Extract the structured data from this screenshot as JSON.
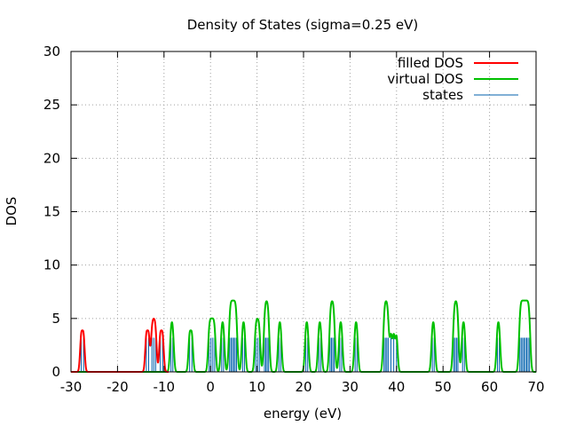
{
  "chart_data": {
    "type": "line",
    "title": "Density of States (sigma=0.25 eV)",
    "xlabel": "energy (eV)",
    "ylabel": "DOS",
    "xlim": [
      -30,
      70
    ],
    "ylim": [
      0,
      30
    ],
    "xticks": [
      -30,
      -20,
      -10,
      0,
      10,
      20,
      30,
      40,
      50,
      60,
      70
    ],
    "yticks": [
      0,
      5,
      10,
      15,
      20,
      25,
      30
    ],
    "grid": true,
    "legend": "top-right",
    "sigma": 0.25,
    "colors": {
      "filled": "#ff0000",
      "virtual": "#00c000",
      "states": "#0060ad"
    },
    "series": [
      {
        "name": "filled DOS",
        "peaks": [
          {
            "x": -27.8,
            "h": 3.2
          },
          {
            "x": -27.3,
            "h": 3.2
          },
          {
            "x": -13.8,
            "h": 3.2
          },
          {
            "x": -13.3,
            "h": 3.2
          },
          {
            "x": -12.6,
            "h": 3.2
          },
          {
            "x": -12.2,
            "h": 3.2
          },
          {
            "x": -11.8,
            "h": 3.2
          },
          {
            "x": -10.8,
            "h": 3.2
          },
          {
            "x": -10.3,
            "h": 3.2
          }
        ]
      },
      {
        "name": "virtual DOS",
        "peaks": [
          {
            "x": -8.5,
            "h": 3.2
          },
          {
            "x": -8.1,
            "h": 3.2
          },
          {
            "x": -4.5,
            "h": 3.2
          },
          {
            "x": -4.0,
            "h": 3.2
          },
          {
            "x": -0.3,
            "h": 3.2
          },
          {
            "x": 0.1,
            "h": 3.2
          },
          {
            "x": 0.5,
            "h": 3.2
          },
          {
            "x": 0.9,
            "h": 3.2
          },
          {
            "x": 2.4,
            "h": 3.2
          },
          {
            "x": 2.8,
            "h": 3.2
          },
          {
            "x": 4.1,
            "h": 3.2
          },
          {
            "x": 4.4,
            "h": 3.2
          },
          {
            "x": 4.7,
            "h": 3.2
          },
          {
            "x": 5.0,
            "h": 3.2
          },
          {
            "x": 5.3,
            "h": 3.2
          },
          {
            "x": 5.6,
            "h": 3.2
          },
          {
            "x": 6.9,
            "h": 3.2
          },
          {
            "x": 7.3,
            "h": 3.2
          },
          {
            "x": 9.7,
            "h": 3.2
          },
          {
            "x": 10.1,
            "h": 3.2
          },
          {
            "x": 10.5,
            "h": 3.2
          },
          {
            "x": 11.6,
            "h": 3.2
          },
          {
            "x": 11.9,
            "h": 3.2
          },
          {
            "x": 12.2,
            "h": 3.2
          },
          {
            "x": 12.5,
            "h": 3.2
          },
          {
            "x": 14.7,
            "h": 3.2
          },
          {
            "x": 15.1,
            "h": 3.2
          },
          {
            "x": 20.5,
            "h": 3.2
          },
          {
            "x": 20.9,
            "h": 3.2
          },
          {
            "x": 23.3,
            "h": 3.2
          },
          {
            "x": 23.7,
            "h": 3.2
          },
          {
            "x": 25.7,
            "h": 3.2
          },
          {
            "x": 26.0,
            "h": 3.2
          },
          {
            "x": 26.3,
            "h": 3.2
          },
          {
            "x": 26.6,
            "h": 3.2
          },
          {
            "x": 27.8,
            "h": 3.2
          },
          {
            "x": 28.2,
            "h": 3.2
          },
          {
            "x": 31.1,
            "h": 3.2
          },
          {
            "x": 31.5,
            "h": 3.2
          },
          {
            "x": 37.3,
            "h": 3.2
          },
          {
            "x": 37.6,
            "h": 3.2
          },
          {
            "x": 37.9,
            "h": 3.2
          },
          {
            "x": 38.2,
            "h": 3.2
          },
          {
            "x": 38.8,
            "h": 3.2
          },
          {
            "x": 39.4,
            "h": 3.2
          },
          {
            "x": 40.0,
            "h": 3.2
          },
          {
            "x": 47.7,
            "h": 3.2
          },
          {
            "x": 48.1,
            "h": 3.2
          },
          {
            "x": 52.3,
            "h": 3.2
          },
          {
            "x": 52.6,
            "h": 3.2
          },
          {
            "x": 52.9,
            "h": 3.2
          },
          {
            "x": 53.2,
            "h": 3.2
          },
          {
            "x": 54.2,
            "h": 3.2
          },
          {
            "x": 54.6,
            "h": 3.2
          },
          {
            "x": 61.7,
            "h": 3.2
          },
          {
            "x": 62.1,
            "h": 3.2
          },
          {
            "x": 66.5,
            "h": 3.2
          },
          {
            "x": 66.8,
            "h": 3.2
          },
          {
            "x": 67.1,
            "h": 3.2
          },
          {
            "x": 67.4,
            "h": 3.2
          },
          {
            "x": 67.7,
            "h": 3.2
          },
          {
            "x": 68.0,
            "h": 3.2
          },
          {
            "x": 68.3,
            "h": 3.2
          },
          {
            "x": 68.6,
            "h": 3.2
          }
        ]
      },
      {
        "name": "states",
        "state_height": 3.2
      }
    ]
  }
}
